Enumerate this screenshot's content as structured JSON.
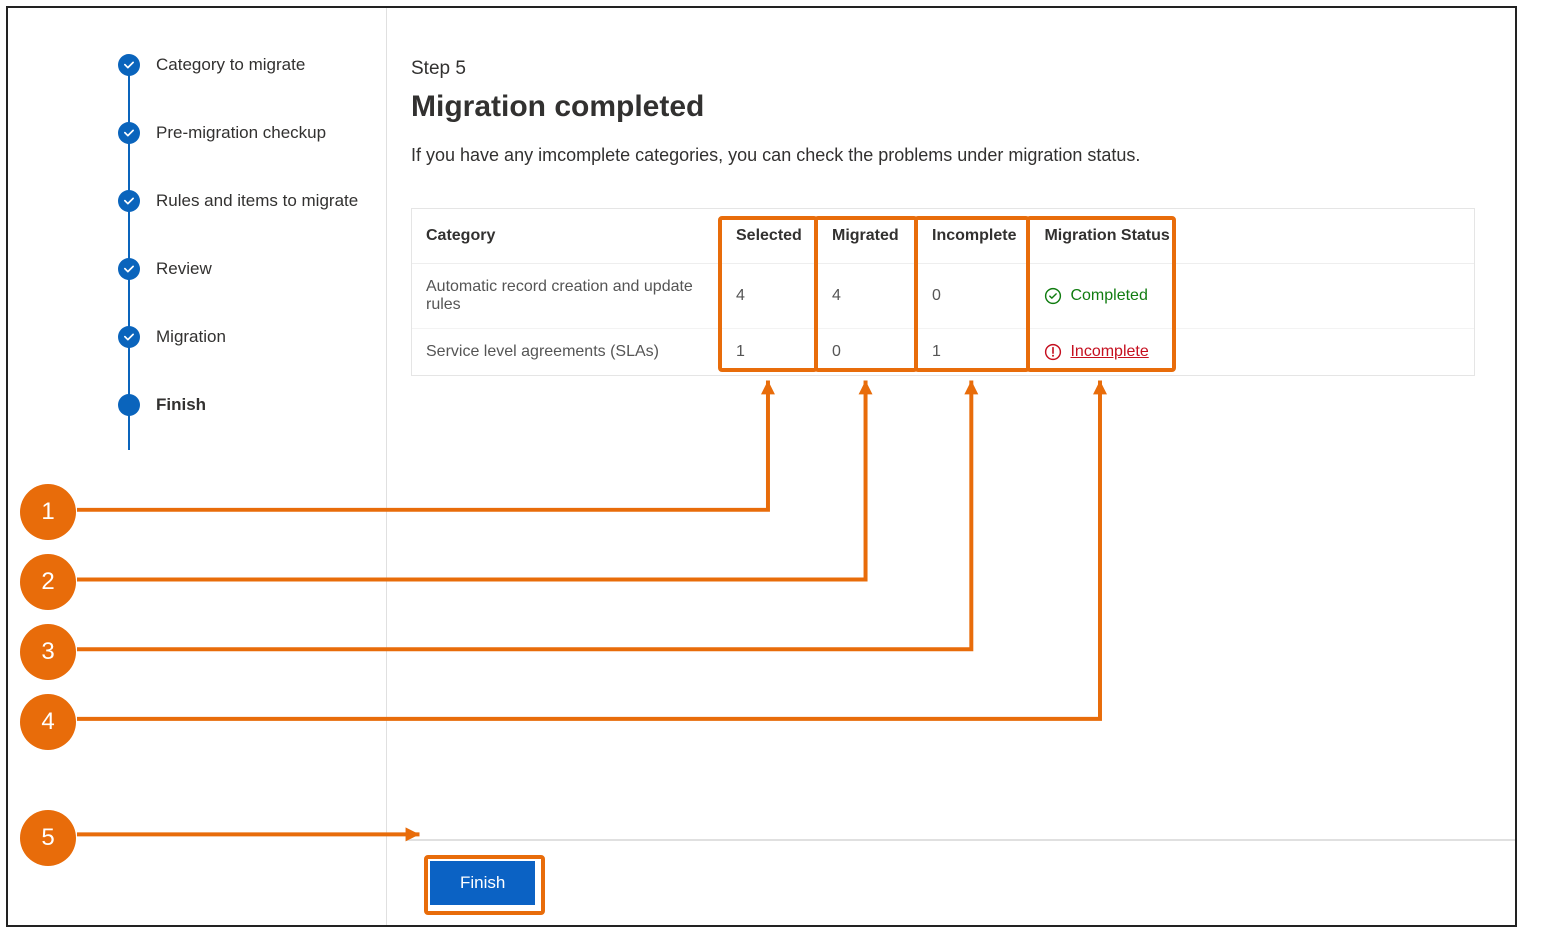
{
  "colors": {
    "accent": "#0a64bc",
    "annotation": "#e86c0a",
    "status_completed": "#107c10",
    "status_incomplete": "#c50f1f",
    "border_light": "#e5e5e5",
    "text_primary": "#323130",
    "text_secondary": "#555555",
    "button_bg": "#0b62c4",
    "background": "#ffffff"
  },
  "sidebar": {
    "steps": [
      {
        "label": "Category to migrate",
        "state": "done"
      },
      {
        "label": "Pre-migration checkup",
        "state": "done"
      },
      {
        "label": "Rules and items to migrate",
        "state": "done"
      },
      {
        "label": "Review",
        "state": "done"
      },
      {
        "label": "Migration",
        "state": "done"
      },
      {
        "label": "Finish",
        "state": "current"
      }
    ]
  },
  "main": {
    "kicker": "Step 5",
    "title": "Migration completed",
    "description": "If you have any imcomplete categories, you can check the problems under migration status."
  },
  "table": {
    "columns": [
      "Category",
      "Selected",
      "Migrated",
      "Incomplete",
      "Migration Status"
    ],
    "rows": [
      {
        "category": "Automatic record creation and update rules",
        "selected": "4",
        "migrated": "4",
        "incomplete": "0",
        "status": "Completed",
        "status_kind": "completed"
      },
      {
        "category": "Service level agreements (SLAs)",
        "selected": "1",
        "migrated": "0",
        "incomplete": "1",
        "status": "Incomplete",
        "status_kind": "incomplete"
      }
    ]
  },
  "footer": {
    "finish_label": "Finish"
  },
  "annotations": {
    "callouts": [
      "1",
      "2",
      "3",
      "4",
      "5"
    ],
    "highlights": [
      {
        "target": "col-selected"
      },
      {
        "target": "col-migrated"
      },
      {
        "target": "col-incomplete"
      },
      {
        "target": "col-status"
      },
      {
        "target": "finish-button"
      }
    ]
  }
}
